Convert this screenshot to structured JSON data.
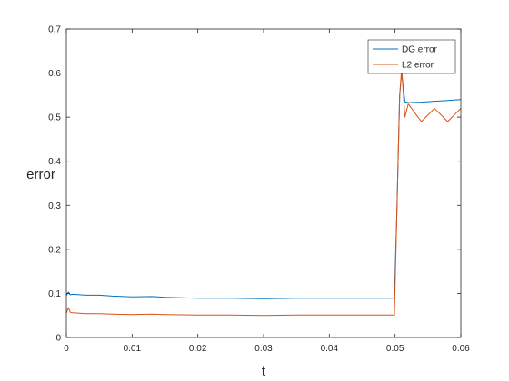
{
  "chart_data": {
    "type": "line",
    "title": "",
    "xlabel": "t",
    "ylabel": "error",
    "xlim": [
      0,
      0.06
    ],
    "ylim": [
      0,
      0.7
    ],
    "xticks": [
      0,
      0.01,
      0.02,
      0.03,
      0.04,
      0.05,
      0.06
    ],
    "xtick_labels": [
      "0",
      "0.01",
      "0.02",
      "0.03",
      "0.04",
      "0.05",
      "0.06"
    ],
    "yticks": [
      0,
      0.1,
      0.2,
      0.3,
      0.4,
      0.5,
      0.6,
      0.7
    ],
    "ytick_labels": [
      "0",
      "0.1",
      "0.2",
      "0.3",
      "0.4",
      "0.5",
      "0.6",
      "0.7"
    ],
    "grid": false,
    "legend_position": "top-right",
    "series": [
      {
        "name": "DG error",
        "color": "#0072BD",
        "x": [
          0,
          0.0003,
          0.0006,
          0.001,
          0.002,
          0.003,
          0.005,
          0.007,
          0.01,
          0.013,
          0.015,
          0.02,
          0.025,
          0.03,
          0.035,
          0.04,
          0.045,
          0.048,
          0.0499,
          0.0503,
          0.0507,
          0.051,
          0.0515,
          0.052,
          0.054,
          0.056,
          0.058,
          0.06
        ],
        "y": [
          0.095,
          0.103,
          0.097,
          0.098,
          0.097,
          0.096,
          0.096,
          0.094,
          0.092,
          0.093,
          0.091,
          0.089,
          0.089,
          0.088,
          0.089,
          0.089,
          0.089,
          0.089,
          0.089,
          0.3,
          0.55,
          0.6,
          0.535,
          0.533,
          0.534,
          0.536,
          0.538,
          0.54
        ]
      },
      {
        "name": "L2 error",
        "color": "#D95319",
        "x": [
          0,
          0.0003,
          0.0006,
          0.001,
          0.002,
          0.003,
          0.005,
          0.007,
          0.01,
          0.013,
          0.015,
          0.02,
          0.025,
          0.03,
          0.035,
          0.04,
          0.045,
          0.048,
          0.0499,
          0.0503,
          0.0507,
          0.051,
          0.0515,
          0.052,
          0.054,
          0.056,
          0.058,
          0.06
        ],
        "y": [
          0.055,
          0.068,
          0.057,
          0.056,
          0.055,
          0.054,
          0.054,
          0.053,
          0.052,
          0.053,
          0.052,
          0.051,
          0.051,
          0.05,
          0.051,
          0.051,
          0.051,
          0.051,
          0.051,
          0.3,
          0.55,
          0.61,
          0.5,
          0.53,
          0.49,
          0.52,
          0.49,
          0.52
        ]
      }
    ]
  }
}
